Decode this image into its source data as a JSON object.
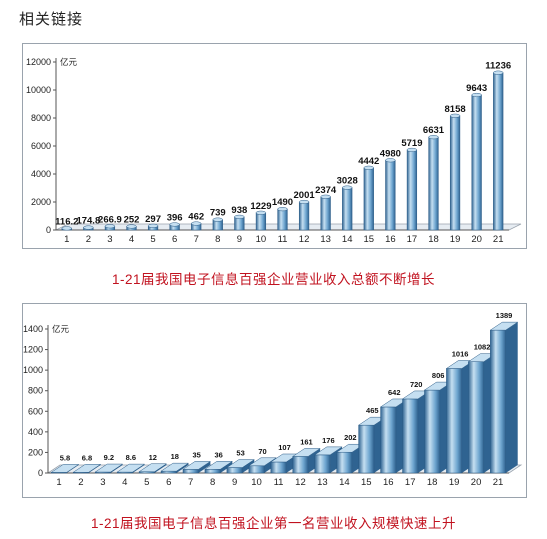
{
  "page": {
    "title": "相关链接",
    "colors": {
      "bar_light": "#c5dff1",
      "bar_mid": "#6fa6d0",
      "bar_dark": "#2f6391",
      "caption": "#c1121f"
    }
  },
  "captions": {
    "chart1": "1-21届我国电子信息百强企业营业收入总额不断增长",
    "chart2": "1-21届我国电子信息百强企业第一名营业收入规模快速上升"
  },
  "chart_data": [
    {
      "type": "bar",
      "title": "1-21届我国电子信息百强企业营业收入总额不断增长",
      "unit": "亿元",
      "categories": [
        "1",
        "2",
        "3",
        "4",
        "5",
        "6",
        "7",
        "8",
        "9",
        "10",
        "11",
        "12",
        "13",
        "14",
        "15",
        "16",
        "17",
        "18",
        "19",
        "20",
        "21"
      ],
      "values": [
        116.2,
        174.8,
        266.9,
        252,
        297,
        396,
        462,
        739,
        938,
        1229,
        1490,
        2001,
        2374,
        3028,
        4442,
        4980,
        5719,
        6631,
        8158,
        9643,
        11236
      ],
      "value_labels": [
        "116.2",
        "174.8",
        "266.9",
        "252",
        "297",
        "396",
        "462",
        "739",
        "938",
        "1229",
        "1490",
        "2001",
        "2374",
        "3028",
        "4442",
        "4980",
        "5719",
        "6631",
        "8158",
        "9643",
        "11236"
      ],
      "ylim": [
        0,
        12000
      ],
      "yticks": [
        0,
        2000,
        4000,
        6000,
        8000,
        10000,
        12000
      ],
      "grid": false,
      "style": "3d-cylinder"
    },
    {
      "type": "bar",
      "title": "1-21届我国电子信息百强企业第一名营业收入规模快速上升",
      "unit": "亿元",
      "categories": [
        "1",
        "2",
        "3",
        "4",
        "5",
        "6",
        "7",
        "8",
        "9",
        "10",
        "11",
        "12",
        "13",
        "14",
        "15",
        "16",
        "17",
        "18",
        "19",
        "20",
        "21"
      ],
      "values": [
        5.8,
        6.8,
        9.2,
        8.6,
        12,
        18,
        35,
        36,
        53,
        70,
        107,
        161,
        176,
        202,
        465,
        642,
        720,
        806,
        1016,
        1082,
        1389
      ],
      "value_labels": [
        "5.8",
        "6.8",
        "9.2",
        "8.6",
        "12",
        "18",
        "35",
        "36",
        "53",
        "70",
        "107",
        "161",
        "176",
        "202",
        "465",
        "642",
        "720",
        "806",
        "1016",
        "1082",
        "1389"
      ],
      "ylim": [
        0,
        1400
      ],
      "yticks": [
        0,
        200,
        400,
        600,
        800,
        1000,
        1200,
        1400
      ],
      "grid": false,
      "style": "3d-box"
    }
  ]
}
